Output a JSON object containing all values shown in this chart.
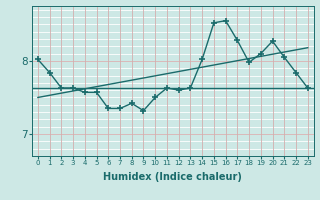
{
  "xlabel": "Humidex (Indice chaleur)",
  "bg_color": "#cde8e5",
  "line_color": "#1a6b6b",
  "xlim": [
    -0.5,
    23.5
  ],
  "ylim": [
    6.7,
    8.75
  ],
  "xticks": [
    0,
    1,
    2,
    3,
    4,
    5,
    6,
    7,
    8,
    9,
    10,
    11,
    12,
    13,
    14,
    15,
    16,
    17,
    18,
    19,
    20,
    21,
    22,
    23
  ],
  "yticks": [
    7,
    8
  ],
  "main_x": [
    0,
    1,
    2,
    3,
    4,
    5,
    6,
    7,
    8,
    9,
    10,
    11,
    12,
    13,
    14,
    15,
    16,
    17,
    18,
    19,
    20,
    21,
    22,
    23
  ],
  "main_y": [
    8.02,
    7.84,
    7.63,
    7.63,
    7.57,
    7.57,
    7.35,
    7.35,
    7.42,
    7.32,
    7.5,
    7.63,
    7.6,
    7.63,
    8.02,
    8.52,
    8.55,
    8.28,
    7.98,
    8.1,
    8.27,
    8.05,
    7.84,
    7.63
  ],
  "flat_line_y": 7.63,
  "trend_x": [
    0,
    23
  ],
  "trend_y": [
    7.5,
    8.18
  ],
  "vgrid_minor_color": "#b8d8d5",
  "hgrid_minor_color": "#b8d8d5",
  "vgrid_major_color": "#e8c8c8",
  "hgrid_major_color": "#e8c8c8"
}
